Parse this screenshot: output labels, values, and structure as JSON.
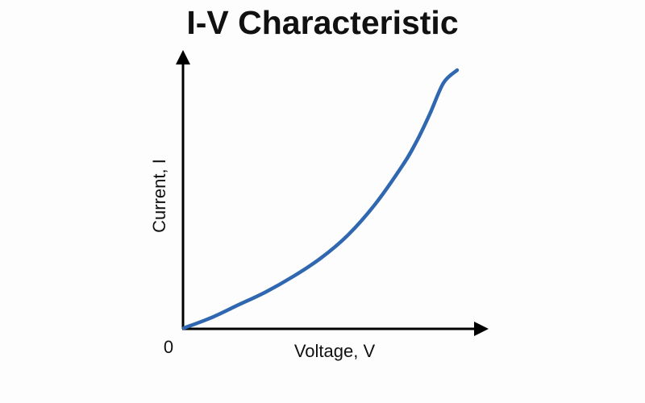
{
  "chart_data": {
    "type": "line",
    "title": "I-V Characteristic",
    "xlabel": "Voltage, V",
    "ylabel": "Current, I",
    "origin_label": "0",
    "xlim": [
      0,
      1
    ],
    "ylim": [
      0,
      1
    ],
    "grid": false,
    "legend": "none",
    "series": [
      {
        "color": "#2f68b0",
        "x": [
          0,
          0.1,
          0.2,
          0.3,
          0.4,
          0.5,
          0.6,
          0.7,
          0.8,
          0.85,
          0.9,
          0.95,
          1.0
        ],
        "y": [
          0,
          0.04,
          0.09,
          0.14,
          0.2,
          0.27,
          0.36,
          0.48,
          0.63,
          0.72,
          0.83,
          0.95,
          1.0
        ]
      }
    ]
  }
}
